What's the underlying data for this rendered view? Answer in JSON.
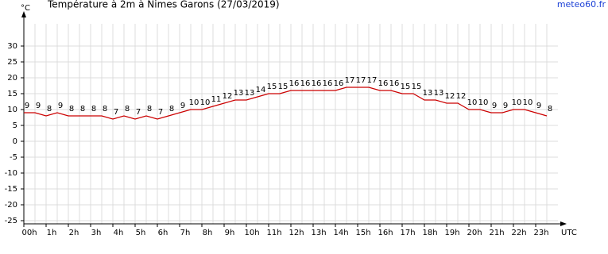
{
  "chart_data": {
    "type": "line",
    "title": "Température à 2m à Nimes Garons (27/03/2019)",
    "y_label": "°C",
    "x_label": "UTC",
    "source": "meteo60.fr",
    "x": [
      0,
      0.5,
      1,
      1.5,
      2,
      2.5,
      3,
      3.5,
      4,
      4.5,
      5,
      5.5,
      6,
      6.5,
      7,
      7.5,
      8,
      8.5,
      9,
      9.5,
      10,
      10.5,
      11,
      11.5,
      12,
      12.5,
      13,
      13.5,
      14,
      14.5,
      15,
      15.5,
      16,
      16.5,
      17,
      17.5,
      18,
      18.5,
      19,
      19.5,
      20,
      20.5,
      21,
      21.5,
      22,
      22.5,
      23,
      23.5
    ],
    "series": [
      {
        "name": "Température",
        "color": "#cc0000",
        "values": [
          9,
          9,
          8,
          9,
          8,
          8,
          8,
          8,
          7,
          8,
          7,
          8,
          7,
          8,
          9,
          10,
          10,
          11,
          12,
          13,
          13,
          14,
          15,
          15,
          16,
          16,
          16,
          16,
          16,
          17,
          17,
          17,
          16,
          16,
          15,
          15,
          13,
          13,
          12,
          12,
          10,
          10,
          9,
          9,
          10,
          10,
          9,
          8
        ]
      }
    ],
    "xlim": [
      0,
      24
    ],
    "xticks": [
      {
        "value": 0,
        "label": "00h"
      },
      {
        "value": 1,
        "label": "1h"
      },
      {
        "value": 2,
        "label": "2h"
      },
      {
        "value": 3,
        "label": "3h"
      },
      {
        "value": 4,
        "label": "4h"
      },
      {
        "value": 5,
        "label": "5h"
      },
      {
        "value": 6,
        "label": "6h"
      },
      {
        "value": 7,
        "label": "7h"
      },
      {
        "value": 8,
        "label": "8h"
      },
      {
        "value": 9,
        "label": "9h"
      },
      {
        "value": 10,
        "label": "10h"
      },
      {
        "value": 11,
        "label": "11h"
      },
      {
        "value": 12,
        "label": "12h"
      },
      {
        "value": 13,
        "label": "13h"
      },
      {
        "value": 14,
        "label": "14h"
      },
      {
        "value": 15,
        "label": "15h"
      },
      {
        "value": 16,
        "label": "16h"
      },
      {
        "value": 17,
        "label": "17h"
      },
      {
        "value": 18,
        "label": "18h"
      },
      {
        "value": 19,
        "label": "19h"
      },
      {
        "value": 20,
        "label": "20h"
      },
      {
        "value": 21,
        "label": "21h"
      },
      {
        "value": 22,
        "label": "22h"
      },
      {
        "value": 23,
        "label": "23h"
      }
    ],
    "ylim": [
      -26,
      37
    ],
    "yticks": [
      30,
      25,
      20,
      15,
      10,
      5,
      0,
      -5,
      -10,
      -15,
      -20,
      -25
    ],
    "grid": true
  }
}
